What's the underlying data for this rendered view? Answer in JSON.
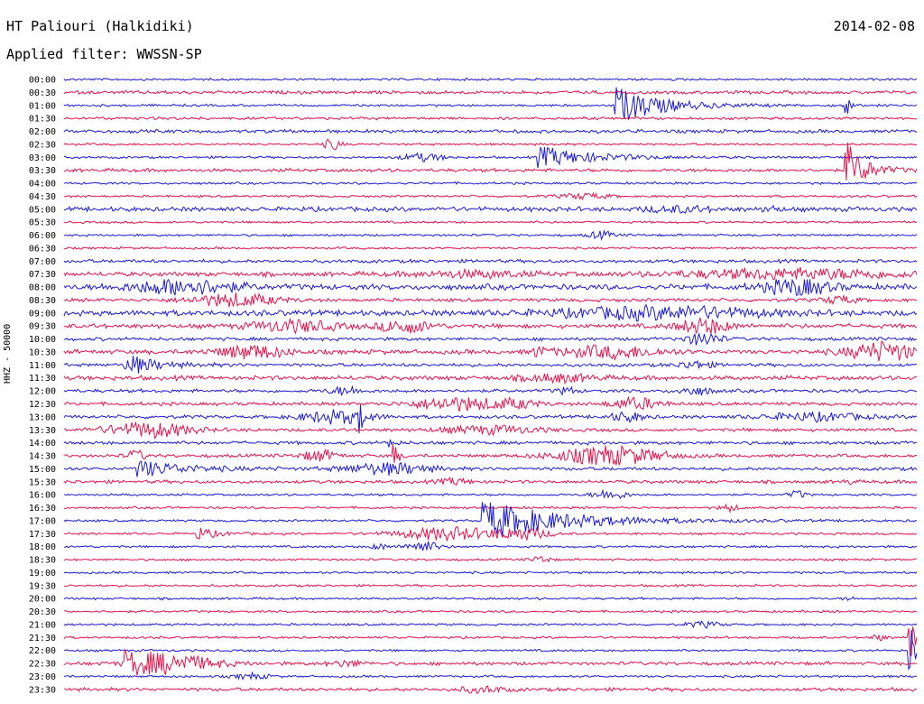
{
  "header": {
    "station": "HT Paliouri (Halkidiki)",
    "date": "2014-02-08",
    "filter": "Applied filter: WWSSN-SP"
  },
  "chart_data": {
    "type": "line",
    "title": "HT Paliouri (Halkidiki)",
    "ylabel": "HHZ - 50000",
    "trace_labels": [
      "00:00",
      "00:30",
      "01:00",
      "01:30",
      "02:00",
      "02:30",
      "03:00",
      "03:30",
      "04:00",
      "04:30",
      "05:00",
      "05:30",
      "06:00",
      "06:30",
      "07:00",
      "07:30",
      "08:00",
      "08:30",
      "09:00",
      "09:30",
      "10:00",
      "10:30",
      "11:00",
      "11:30",
      "12:00",
      "12:30",
      "13:00",
      "13:30",
      "14:00",
      "14:30",
      "15:00",
      "15:30",
      "16:00",
      "16:30",
      "17:00",
      "17:30",
      "18:00",
      "18:30",
      "19:00",
      "19:30",
      "20:00",
      "20:30",
      "21:00",
      "21:30",
      "22:00",
      "22:30",
      "23:00",
      "23:30"
    ],
    "colors": [
      "#1a1adb",
      "#e8124a"
    ],
    "noise": [
      1,
      1.5,
      1,
      1.2,
      1.5,
      1,
      1,
      1.5,
      1,
      1,
      2,
      1,
      1,
      1,
      1.5,
      2,
      2.5,
      1.5,
      2.5,
      2,
      1.5,
      2,
      1.5,
      2,
      1.5,
      1.5,
      1.5,
      1.5,
      1.5,
      1.5,
      1.5,
      1.5,
      1,
      1,
      1,
      1,
      1,
      1,
      1,
      1,
      1,
      1,
      1,
      1,
      1,
      1.5,
      1,
      1.5
    ],
    "events": [
      [],
      [],
      [
        {
          "t": 0.645,
          "a": 22,
          "d": 0.05,
          "s": 1
        },
        {
          "t": 0.915,
          "a": 50,
          "d": 0.003,
          "s": 1
        }
      ],
      [],
      [],
      [
        {
          "t": 0.315,
          "a": 6,
          "d": 0.01,
          "s": 0
        }
      ],
      [
        {
          "t": 0.42,
          "a": 4,
          "d": 0.025,
          "s": 0
        },
        {
          "t": 0.555,
          "a": 12,
          "d": 0.06,
          "s": 1
        }
      ],
      [
        {
          "t": 0.915,
          "a": 35,
          "d": 0.02,
          "s": 1
        }
      ],
      [],
      [
        {
          "t": 0.61,
          "a": 3,
          "d": 0.03,
          "s": 0
        }
      ],
      [
        {
          "t": 0.72,
          "a": 3,
          "d": 0.04,
          "s": 0
        },
        {
          "t": 0.83,
          "a": 3,
          "d": 0.01,
          "s": 0
        }
      ],
      [],
      [
        {
          "t": 0.63,
          "a": 4,
          "d": 0.015,
          "s": 0
        }
      ],
      [],
      [],
      [
        {
          "t": 0.48,
          "a": 3,
          "d": 0.07,
          "s": 0
        },
        {
          "t": 0.86,
          "a": 5,
          "d": 0.14,
          "s": 0
        }
      ],
      [
        {
          "t": 0.14,
          "a": 8,
          "d": 0.06,
          "s": 0
        },
        {
          "t": 0.86,
          "a": 8,
          "d": 0.04,
          "s": 0
        }
      ],
      [
        {
          "t": 0.2,
          "a": 7,
          "d": 0.05,
          "s": 0
        },
        {
          "t": 0.91,
          "a": 4,
          "d": 0.02,
          "s": 0
        }
      ],
      [
        {
          "t": 0.7,
          "a": 6,
          "d": 0.12,
          "s": 0
        }
      ],
      [
        {
          "t": 0.27,
          "a": 6,
          "d": 0.05,
          "s": 0
        },
        {
          "t": 0.4,
          "a": 7,
          "d": 0.03,
          "s": 0
        },
        {
          "t": 0.75,
          "a": 8,
          "d": 0.03,
          "s": 0
        }
      ],
      [
        {
          "t": 0.75,
          "a": 7,
          "d": 0.02,
          "s": 0
        }
      ],
      [
        {
          "t": 0.22,
          "a": 7,
          "d": 0.04,
          "s": 0
        },
        {
          "t": 0.55,
          "a": 8,
          "d": 0.01,
          "s": 1
        },
        {
          "t": 0.64,
          "a": 6,
          "d": 0.06,
          "s": 0
        },
        {
          "t": 0.96,
          "a": 10,
          "d": 0.04,
          "s": 0
        }
      ],
      [
        {
          "t": 0.07,
          "a": 14,
          "d": 0.03,
          "s": 1
        },
        {
          "t": 0.74,
          "a": 4,
          "d": 0.02,
          "s": 0
        }
      ],
      [
        {
          "t": 0.58,
          "a": 4,
          "d": 0.04,
          "s": 0
        }
      ],
      [
        {
          "t": 0.33,
          "a": 4,
          "d": 0.02,
          "s": 0
        },
        {
          "t": 0.59,
          "a": 4,
          "d": 0.01,
          "s": 0
        },
        {
          "t": 0.74,
          "a": 4,
          "d": 0.02,
          "s": 0
        }
      ],
      [
        {
          "t": 0.46,
          "a": 7,
          "d": 0.05,
          "s": 0
        },
        {
          "t": 0.53,
          "a": 4,
          "d": 0.03,
          "s": 0
        },
        {
          "t": 0.67,
          "a": 6,
          "d": 0.03,
          "s": 0
        }
      ],
      [
        {
          "t": 0.32,
          "a": 7,
          "d": 0.04,
          "s": 0
        },
        {
          "t": 0.345,
          "a": 16,
          "d": 0.006,
          "s": 1
        },
        {
          "t": 0.66,
          "a": 5,
          "d": 0.02,
          "s": 0
        },
        {
          "t": 0.88,
          "a": 4,
          "d": 0.06,
          "s": 0
        }
      ],
      [
        {
          "t": 0.1,
          "a": 8,
          "d": 0.05,
          "s": 0
        },
        {
          "t": 0.5,
          "a": 4,
          "d": 0.06,
          "s": 0
        }
      ],
      [
        {
          "t": 0.38,
          "a": 10,
          "d": 0.005,
          "s": 1
        }
      ],
      [
        {
          "t": 0.085,
          "a": 6,
          "d": 0.01,
          "s": 0
        },
        {
          "t": 0.3,
          "a": 6,
          "d": 0.02,
          "s": 0
        },
        {
          "t": 0.385,
          "a": 20,
          "d": 0.005,
          "s": 1
        },
        {
          "t": 0.64,
          "a": 10,
          "d": 0.06,
          "s": 0
        }
      ],
      [
        {
          "t": 0.085,
          "a": 10,
          "d": 0.05,
          "s": 1
        },
        {
          "t": 0.38,
          "a": 6,
          "d": 0.05,
          "s": 0
        }
      ],
      [
        {
          "t": 0.46,
          "a": 3,
          "d": 0.02,
          "s": 0
        },
        {
          "t": 0.92,
          "a": 3,
          "d": 0.005,
          "s": 0
        }
      ],
      [
        {
          "t": 0.64,
          "a": 5,
          "d": 0.02,
          "s": 0
        },
        {
          "t": 0.86,
          "a": 4,
          "d": 0.01,
          "s": 0
        }
      ],
      [
        {
          "t": 0.78,
          "a": 4,
          "d": 0.01,
          "s": 0
        }
      ],
      [
        {
          "t": 0.49,
          "a": 22,
          "d": 0.09,
          "s": 1
        }
      ],
      [
        {
          "t": 0.155,
          "a": 8,
          "d": 0.02,
          "s": 1
        },
        {
          "t": 0.45,
          "a": 7,
          "d": 0.06,
          "s": 0
        },
        {
          "t": 0.54,
          "a": 6,
          "d": 0.03,
          "s": 0
        }
      ],
      [
        {
          "t": 0.37,
          "a": 3,
          "d": 0.01,
          "s": 0
        },
        {
          "t": 0.42,
          "a": 6,
          "d": 0.02,
          "s": 0
        }
      ],
      [
        {
          "t": 0.56,
          "a": 4,
          "d": 0.01,
          "s": 0
        }
      ],
      [],
      [],
      [
        {
          "t": 0.92,
          "a": 3,
          "d": 0.005,
          "s": 0
        }
      ],
      [],
      [
        {
          "t": 0.75,
          "a": 3,
          "d": 0.02,
          "s": 0
        }
      ],
      [
        {
          "t": 0.955,
          "a": 3,
          "d": 0.01,
          "s": 0
        },
        {
          "t": 0.99,
          "a": 25,
          "d": 0.02,
          "s": 1
        }
      ],
      [
        {
          "t": 0.99,
          "a": 30,
          "d": 0.02,
          "s": 1
        }
      ],
      [
        {
          "t": 0.07,
          "a": 14,
          "d": 0.04,
          "s": 1
        },
        {
          "t": 0.13,
          "a": 7,
          "d": 0.05,
          "s": 0
        },
        {
          "t": 0.33,
          "a": 3,
          "d": 0.02,
          "s": 0
        }
      ],
      [
        {
          "t": 0.22,
          "a": 3,
          "d": 0.02,
          "s": 0
        }
      ],
      [
        {
          "t": 0.49,
          "a": 3,
          "d": 0.03,
          "s": 0
        }
      ]
    ]
  }
}
